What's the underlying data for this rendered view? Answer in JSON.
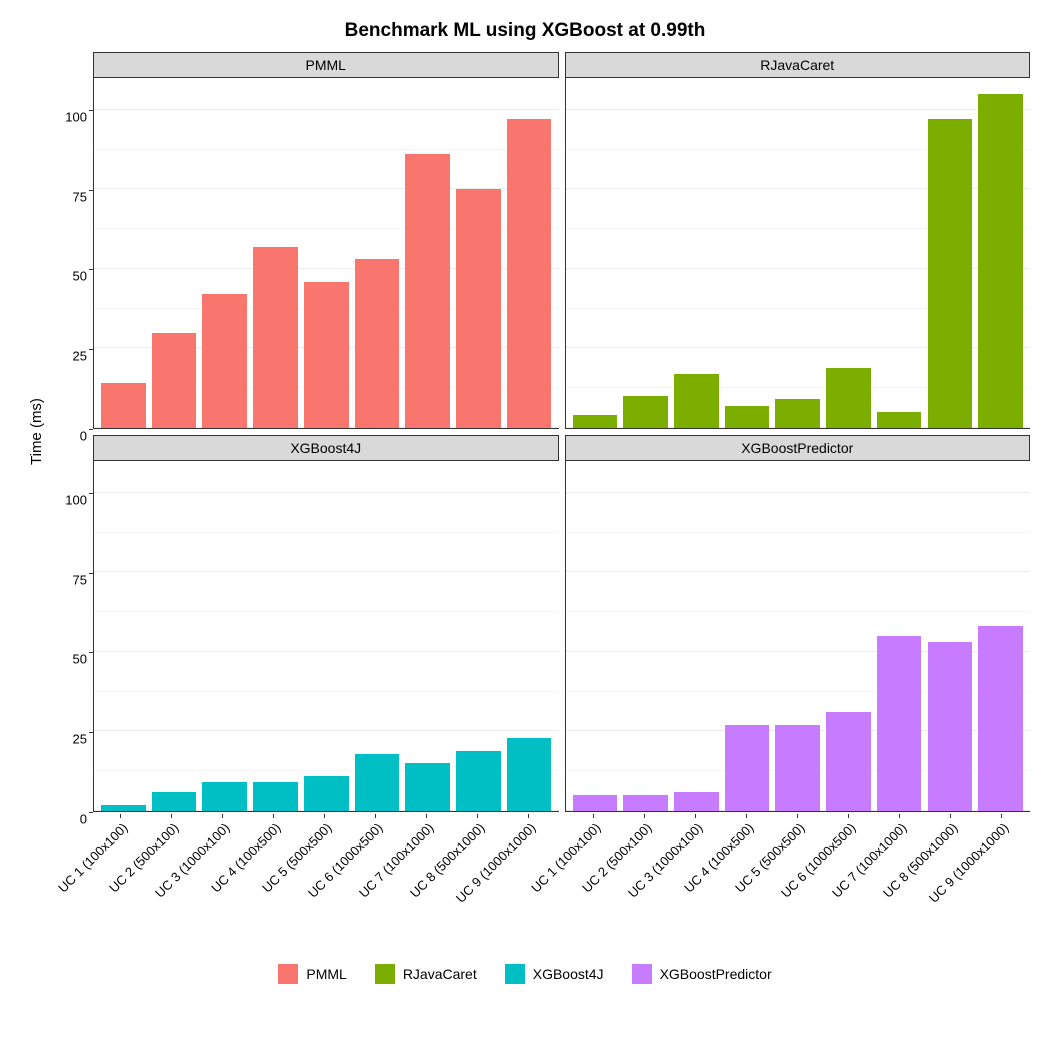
{
  "title": "Benchmark ML using XGBoost at 0.99th",
  "title_fontsize": 19,
  "ylabel": "Time (ms)",
  "label_fontsize": 15,
  "tick_fontsize": 13,
  "background_color": "#ffffff",
  "panel_background": "#ffffff",
  "strip_background": "#d9d9d9",
  "grid_color": "#ebebeb",
  "grid_minor_color": "#f5f5f5",
  "axis_color": "#333333",
  "ylim": [
    0,
    110
  ],
  "yticks": [
    0,
    25,
    50,
    75,
    100
  ],
  "categories": [
    "UC 1 (100x100)",
    "UC 2 (500x100)",
    "UC 3 (1000x100)",
    "UC 4 (100x500)",
    "UC 5 (500x500)",
    "UC 6 (1000x500)",
    "UC 7 (100x1000)",
    "UC 8 (500x1000)",
    "UC 9 (1000x1000)"
  ],
  "facets": [
    {
      "name": "PMML",
      "color": "#f8766d",
      "values": [
        14,
        30,
        42,
        57,
        46,
        53,
        86,
        75,
        97
      ]
    },
    {
      "name": "RJavaCaret",
      "color": "#7cae00",
      "values": [
        4,
        10,
        17,
        7,
        9,
        19,
        5,
        97,
        105
      ]
    },
    {
      "name": "XGBoost4J",
      "color": "#00bfc4",
      "values": [
        2,
        6,
        9,
        9,
        11,
        18,
        15,
        19,
        23
      ]
    },
    {
      "name": "XGBoostPredictor",
      "color": "#c77cff",
      "values": [
        5,
        5,
        6,
        27,
        27,
        31,
        55,
        53,
        58
      ]
    }
  ],
  "legend_items": [
    {
      "label": "PMML",
      "color": "#f8766d"
    },
    {
      "label": "RJavaCaret",
      "color": "#7cae00"
    },
    {
      "label": "XGBoost4J",
      "color": "#00bfc4"
    },
    {
      "label": "XGBoostPredictor",
      "color": "#c77cff"
    }
  ],
  "bar_width": 0.88
}
